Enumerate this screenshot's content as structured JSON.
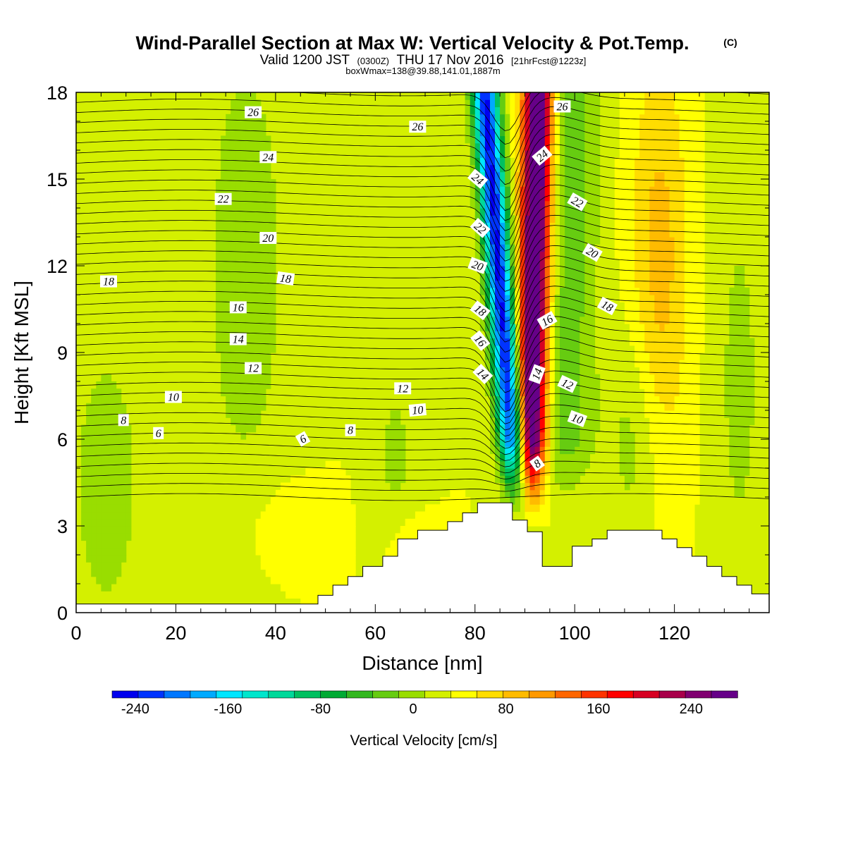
{
  "title": {
    "main": "Wind-Parallel Section at Max W: Vertical Velocity & Pot.Temp.",
    "copyright": "(C)",
    "valid_prefix": "Valid 1200 JST",
    "valid_utc": "(0300Z)",
    "valid_date": "THU 17 Nov 2016",
    "forecast": "[21hrFcst@1223z]",
    "box_info": "boxWmax=138@39.88,141.01,1887m"
  },
  "chart_data": {
    "type": "heatmap",
    "xlabel": "Distance [nm]",
    "ylabel": "Height [Kft MSL]",
    "xlim": [
      0,
      139
    ],
    "ylim": [
      0,
      18
    ],
    "x_ticks": [
      0,
      20,
      40,
      60,
      80,
      100,
      120
    ],
    "y_ticks": [
      0,
      3,
      6,
      9,
      12,
      15,
      18
    ],
    "colorbar": {
      "title": "Vertical Velocity [cm/s]",
      "range": [
        -260,
        280
      ],
      "step": 20,
      "tick_values": [
        -240,
        -160,
        -80,
        0,
        80,
        160,
        240
      ],
      "tick_labels": [
        "-240",
        "-160",
        "-80",
        "0",
        "80",
        "160",
        "240"
      ],
      "colors": [
        "#0000ee",
        "#0033ff",
        "#0077ff",
        "#00aaff",
        "#00e6ff",
        "#00e6cc",
        "#00d99a",
        "#00c060",
        "#00aa33",
        "#33b81f",
        "#66cc11",
        "#99dd00",
        "#d4f000",
        "#ffff00",
        "#ffdd00",
        "#ffbb00",
        "#ff9900",
        "#ff6600",
        "#ff3300",
        "#ff0000",
        "#d70022",
        "#a8004a",
        "#800070",
        "#660088"
      ]
    },
    "terrain_profile": {
      "x": [
        0,
        48.5,
        48.5,
        51.5,
        51.5,
        54.5,
        54.5,
        57.5,
        57.5,
        61.5,
        61.5,
        64.5,
        64.5,
        68.5,
        68.5,
        74.5,
        74.5,
        77.5,
        77.5,
        80.5,
        80.5,
        83.5,
        83.5,
        87.5,
        87.5,
        90.5,
        90.5,
        93.5,
        93.5,
        99.5,
        99.5,
        103.5,
        103.5,
        106.5,
        106.5,
        109.5,
        109.5,
        117.5,
        117.5,
        120.5,
        120.5,
        123.5,
        123.5,
        126.5,
        126.5,
        129.5,
        129.5,
        132.5,
        132.5,
        135.5,
        135.5,
        139
      ],
      "height": [
        0.3,
        0.3,
        0.6,
        0.6,
        0.95,
        0.95,
        1.25,
        1.25,
        1.6,
        1.6,
        1.95,
        1.95,
        2.55,
        2.55,
        2.85,
        2.85,
        3.15,
        3.15,
        3.45,
        3.45,
        3.8,
        3.8,
        3.8,
        3.8,
        3.2,
        3.2,
        2.8,
        2.8,
        1.6,
        1.6,
        2.3,
        2.3,
        2.55,
        2.55,
        2.85,
        2.85,
        2.85,
        2.85,
        2.55,
        2.55,
        2.25,
        2.25,
        1.95,
        1.95,
        1.6,
        1.6,
        1.25,
        1.25,
        0.95,
        0.95,
        0.65,
        0.65
      ]
    },
    "contour_labels": [
      {
        "value": "26",
        "x": 35.5,
        "y": 17.3,
        "angle": 0
      },
      {
        "value": "26",
        "x": 68.5,
        "y": 16.8,
        "angle": 0
      },
      {
        "value": "26",
        "x": 97.5,
        "y": 17.5,
        "angle": 0
      },
      {
        "value": "24",
        "x": 38.5,
        "y": 15.75,
        "angle": 0
      },
      {
        "value": "24",
        "x": 80.5,
        "y": 15.0,
        "angle": 40
      },
      {
        "value": "24",
        "x": 93.5,
        "y": 15.8,
        "angle": -40
      },
      {
        "value": "22",
        "x": 29.5,
        "y": 14.3,
        "angle": 0
      },
      {
        "value": "22",
        "x": 81.0,
        "y": 13.3,
        "angle": 42
      },
      {
        "value": "22",
        "x": 100.5,
        "y": 14.2,
        "angle": 30
      },
      {
        "value": "20",
        "x": 38.5,
        "y": 12.95,
        "angle": 0
      },
      {
        "value": "20",
        "x": 80.5,
        "y": 12.0,
        "angle": 20
      },
      {
        "value": "20",
        "x": 103.5,
        "y": 12.45,
        "angle": 30
      },
      {
        "value": "18",
        "x": 6.5,
        "y": 11.45,
        "angle": 0
      },
      {
        "value": "18",
        "x": 42.0,
        "y": 11.55,
        "angle": 8
      },
      {
        "value": "18",
        "x": 81.0,
        "y": 10.45,
        "angle": 38
      },
      {
        "value": "18",
        "x": 106.5,
        "y": 10.6,
        "angle": 28
      },
      {
        "value": "16",
        "x": 32.5,
        "y": 10.55,
        "angle": 0
      },
      {
        "value": "16",
        "x": 81.0,
        "y": 9.4,
        "angle": 50
      },
      {
        "value": "16",
        "x": 94.5,
        "y": 10.1,
        "angle": -30
      },
      {
        "value": "14",
        "x": 32.5,
        "y": 9.45,
        "angle": 0
      },
      {
        "value": "14",
        "x": 81.5,
        "y": 8.25,
        "angle": 45
      },
      {
        "value": "14",
        "x": 92.5,
        "y": 8.25,
        "angle": -70
      },
      {
        "value": "12",
        "x": 35.5,
        "y": 8.45,
        "angle": 0
      },
      {
        "value": "12",
        "x": 65.5,
        "y": 7.75,
        "angle": 0
      },
      {
        "value": "12",
        "x": 98.5,
        "y": 7.9,
        "angle": 25
      },
      {
        "value": "10",
        "x": 19.5,
        "y": 7.45,
        "angle": 0
      },
      {
        "value": "10",
        "x": 68.5,
        "y": 7.0,
        "angle": -5
      },
      {
        "value": "10",
        "x": 100.5,
        "y": 6.7,
        "angle": 20
      },
      {
        "value": "8",
        "x": 9.5,
        "y": 6.65,
        "angle": 0
      },
      {
        "value": "8",
        "x": 55.0,
        "y": 6.3,
        "angle": 0
      },
      {
        "value": "8",
        "x": 92.5,
        "y": 5.15,
        "angle": -35
      },
      {
        "value": "6",
        "x": 16.5,
        "y": 6.2,
        "angle": 0
      },
      {
        "value": "6",
        "x": 45.5,
        "y": 6.0,
        "angle": -30
      }
    ]
  }
}
